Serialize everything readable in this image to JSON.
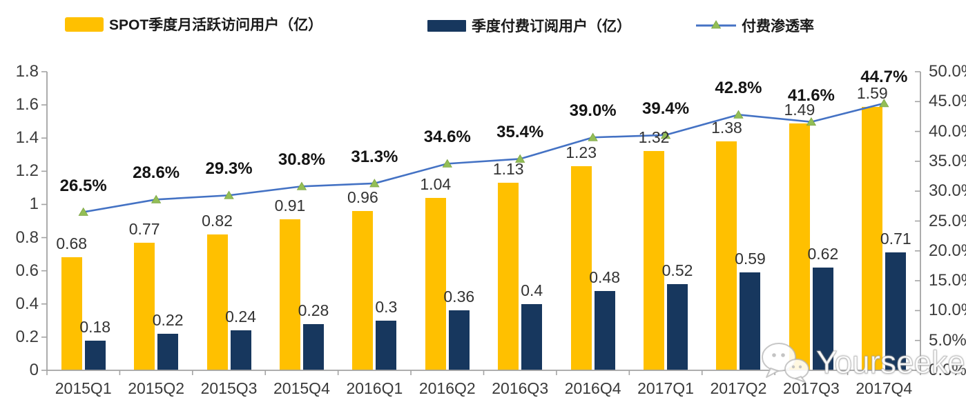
{
  "legend": {
    "mau_label": "SPOT季度月活跃访问用户（亿）",
    "subs_label": "季度付费订阅用户（亿）",
    "penetration_label": "付费渗透率"
  },
  "watermark": {
    "text": "Yourseeker",
    "icon": "wechat-icon"
  },
  "colors": {
    "mau_bar": "#FFC000",
    "subs_bar": "#17375E",
    "line": "#4472C4",
    "marker": "#93BE56",
    "marker_stroke": "#7DA544",
    "axis": "#A3A3A3",
    "value_text": "#333333",
    "pct_text": "#141414"
  },
  "chart_data": {
    "type": "combo-bar-line",
    "title": "",
    "categories": [
      "2015Q1",
      "2015Q2",
      "2015Q3",
      "2015Q4",
      "2016Q1",
      "2016Q2",
      "2016Q3",
      "2016Q4",
      "2017Q1",
      "2017Q2",
      "2017Q3",
      "2017Q4"
    ],
    "series": [
      {
        "name": "SPOT季度月活跃访问用户（亿）",
        "type": "bar",
        "axis": "left",
        "color": "#FFC000",
        "values": [
          0.68,
          0.77,
          0.82,
          0.91,
          0.96,
          1.04,
          1.13,
          1.23,
          1.32,
          1.38,
          1.49,
          1.59
        ],
        "labels": [
          "0.68",
          "0.77",
          "0.82",
          "0.91",
          "0.96",
          "1.04",
          "1.13",
          "1.23",
          "1.32",
          "1.38",
          "1.49",
          "1.59"
        ]
      },
      {
        "name": "季度付费订阅用户（亿）",
        "type": "bar",
        "axis": "left",
        "color": "#17375E",
        "values": [
          0.18,
          0.22,
          0.24,
          0.28,
          0.3,
          0.36,
          0.4,
          0.48,
          0.52,
          0.59,
          0.62,
          0.71
        ],
        "labels": [
          "0.18",
          "0.22",
          "0.24",
          "0.28",
          "0.3",
          "0.36",
          "0.4",
          "0.48",
          "0.52",
          "0.59",
          "0.62",
          "0.71"
        ]
      },
      {
        "name": "付费渗透率",
        "type": "line",
        "axis": "right",
        "color": "#4472C4",
        "marker": "triangle",
        "marker_color": "#93BE56",
        "values": [
          26.5,
          28.6,
          29.3,
          30.8,
          31.3,
          34.6,
          35.4,
          39.0,
          39.4,
          42.8,
          41.6,
          44.7
        ],
        "labels": [
          "26.5%",
          "28.6%",
          "29.3%",
          "30.8%",
          "31.3%",
          "34.6%",
          "35.4%",
          "39.0%",
          "39.4%",
          "42.8%",
          "41.6%",
          "44.7%"
        ]
      }
    ],
    "left_axis": {
      "min": 0,
      "max": 1.8,
      "step": 0.2,
      "ticks": [
        "1.8",
        "1.6",
        "1.4",
        "1.2",
        "1",
        "0.8",
        "0.6",
        "0.4",
        "0.2",
        "0"
      ]
    },
    "right_axis": {
      "min": 0,
      "max": 50,
      "step": 5,
      "ticks": [
        "50.0%",
        "45.0%",
        "40.0%",
        "35.0%",
        "30.0%",
        "25.0%",
        "20.0%",
        "15.0%",
        "10.0%",
        "5.0%",
        "0.0%"
      ]
    },
    "grid": false,
    "legend_position": "top"
  }
}
